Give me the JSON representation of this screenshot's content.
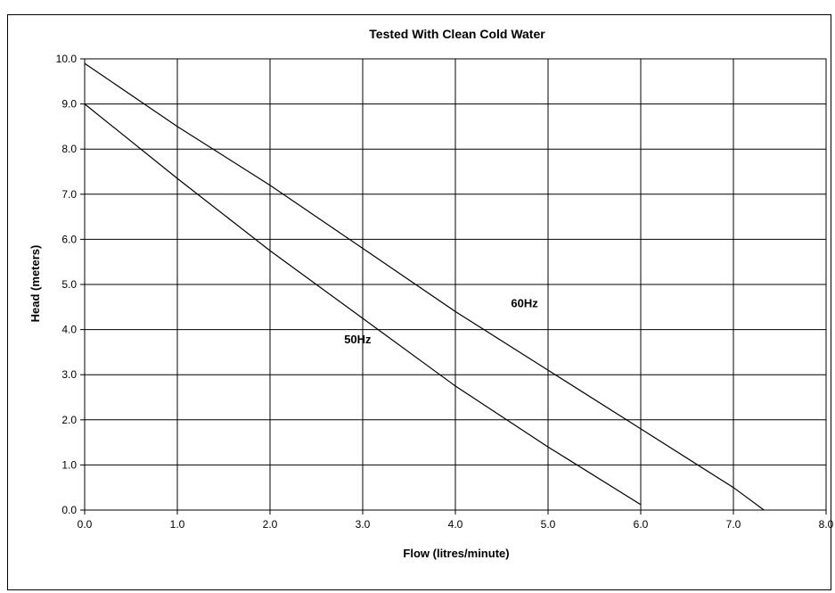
{
  "chart_data": {
    "type": "line",
    "title": "Tested With Clean Cold Water",
    "xlabel": "Flow (litres/minute)",
    "ylabel": "Head (meters)",
    "xlim": [
      0,
      8
    ],
    "ylim": [
      0,
      10
    ],
    "x_ticks": [
      "0.0",
      "1.0",
      "2.0",
      "3.0",
      "4.0",
      "5.0",
      "6.0",
      "7.0",
      "8.0"
    ],
    "y_ticks": [
      "0.0",
      "1.0",
      "2.0",
      "3.0",
      "4.0",
      "5.0",
      "6.0",
      "7.0",
      "8.0",
      "9.0",
      "10.0"
    ],
    "grid": true,
    "series": [
      {
        "name": "60Hz",
        "color": "#000000",
        "points": [
          [
            0.0,
            9.9
          ],
          [
            1.0,
            8.5
          ],
          [
            2.0,
            7.2
          ],
          [
            3.0,
            5.8
          ],
          [
            4.0,
            4.4
          ],
          [
            5.0,
            3.1
          ],
          [
            6.0,
            1.8
          ],
          [
            7.0,
            0.5
          ],
          [
            7.33,
            0.0
          ]
        ],
        "label_at": [
          4.6,
          4.5
        ]
      },
      {
        "name": "50Hz",
        "color": "#000000",
        "points": [
          [
            0.0,
            9.0
          ],
          [
            1.0,
            7.35
          ],
          [
            2.0,
            5.75
          ],
          [
            3.0,
            4.25
          ],
          [
            4.0,
            2.75
          ],
          [
            5.0,
            1.4
          ],
          [
            6.0,
            0.12
          ]
        ],
        "label_at": [
          2.8,
          3.7
        ]
      }
    ]
  }
}
